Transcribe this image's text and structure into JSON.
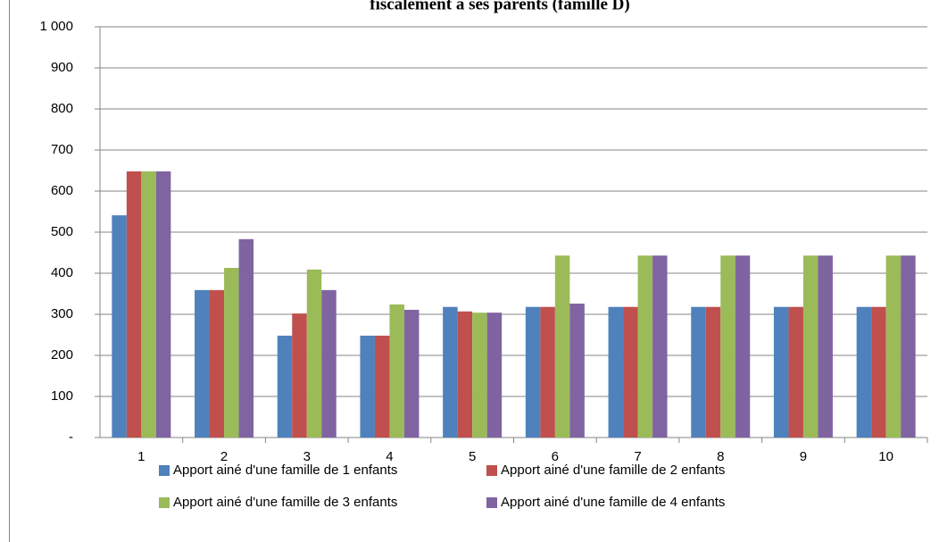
{
  "chart_data": {
    "type": "bar",
    "title": "fiscalement à ses parents (famille D)",
    "categories": [
      "1",
      "2",
      "3",
      "4",
      "5",
      "6",
      "7",
      "8",
      "9",
      "10"
    ],
    "series": [
      {
        "name": "Apport ainé d'une famille de 1 enfants",
        "color": "#4f81bd",
        "values": [
          541,
          359,
          248,
          248,
          318,
          318,
          318,
          318,
          318,
          318
        ]
      },
      {
        "name": "Apport ainé d'une famille de 2 enfants",
        "color": "#c0504d",
        "values": [
          648,
          359,
          302,
          248,
          307,
          318,
          318,
          318,
          318,
          318
        ]
      },
      {
        "name": "Apport ainé d'une famille de 3 enfants",
        "color": "#9bbb59",
        "values": [
          648,
          413,
          409,
          324,
          304,
          443,
          443,
          443,
          443,
          443
        ]
      },
      {
        "name": "Apport ainé d'une famille de 4 enfants",
        "color": "#8064a2",
        "values": [
          648,
          483,
          359,
          311,
          304,
          326,
          443,
          443,
          443,
          443
        ]
      }
    ],
    "ylim": [
      0,
      1000
    ],
    "yticks": [
      {
        "value": 0,
        "label": "-"
      },
      100,
      200,
      300,
      400,
      500,
      600,
      700,
      800,
      900,
      {
        "value": 1000,
        "label": "1 000"
      }
    ],
    "grid": true
  }
}
